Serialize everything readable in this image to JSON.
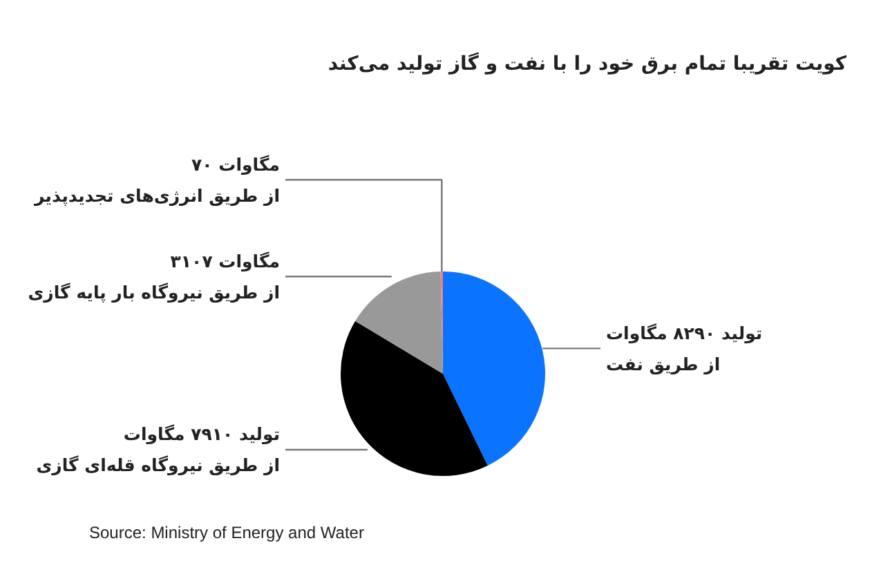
{
  "chart_data": {
    "type": "pie",
    "title": "کویت تقریبا تمام برق خود را با نفت و گاز تولید می‌کند",
    "categories": [
      "تولید ۸۲۹۰ مگاوات\nاز طریق نفت",
      "تولید ۷۹۱۰ مگاوات\nاز طریق نیروگاه قله‌ای گازی",
      "۳۱۰۷ مگاوات\nاز طریق نیروگاه بار پایه گازی",
      "۷۰ مگاوات\nاز طریق انرژی‌های تجدیدپذیر"
    ],
    "values": [
      8290,
      7910,
      3107,
      70
    ],
    "colors": [
      "#0a74ff",
      "#000000",
      "#999999",
      "#f08080"
    ],
    "annotations": [
      "Source: Ministry of Energy and Water"
    ]
  }
}
